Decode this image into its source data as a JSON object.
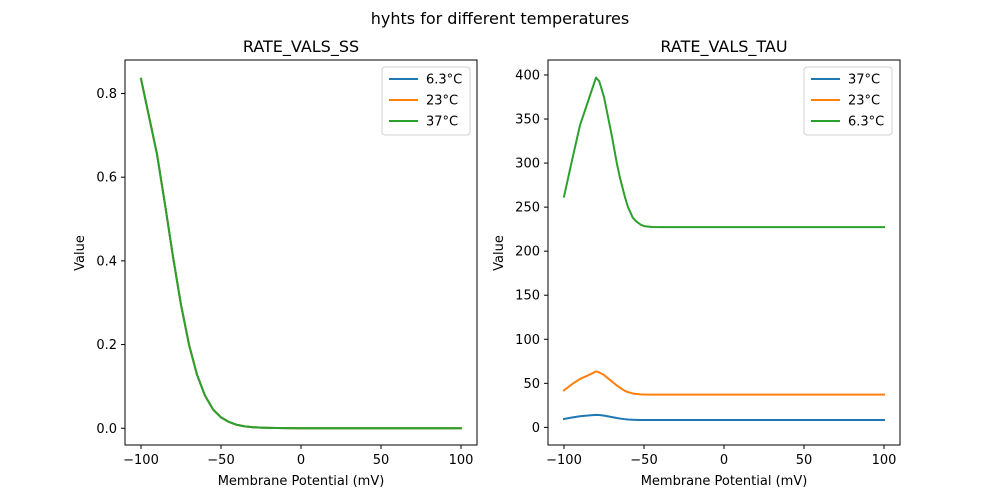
{
  "figure": {
    "suptitle": "hyhts for different temperatures"
  },
  "chart_data": [
    {
      "type": "line",
      "title": "RATE_VALS_SS",
      "xlabel": "Membrane Potential (mV)",
      "ylabel": "Value",
      "xlim": [
        -110,
        110
      ],
      "ylim": [
        -0.04,
        0.88
      ],
      "xticks": [
        -100,
        -50,
        0,
        50,
        100
      ],
      "xtick_labels": [
        "−100",
        "−50",
        "0",
        "50",
        "100"
      ],
      "yticks": [
        0.0,
        0.2,
        0.4,
        0.6,
        0.8
      ],
      "ytick_labels": [
        "0.0",
        "0.2",
        "0.4",
        "0.6",
        "0.8"
      ],
      "legend_position": "top-right",
      "grid": false,
      "x": [
        -100,
        -95,
        -90,
        -85,
        -80,
        -75,
        -70,
        -65,
        -60,
        -55,
        -50,
        -45,
        -40,
        -35,
        -30,
        -25,
        -20,
        -10,
        0,
        25,
        50,
        75,
        100
      ],
      "series": [
        {
          "name": "6.3°C",
          "color": "#1f77b4",
          "values": [
            0.835,
            0.745,
            0.655,
            0.535,
            0.41,
            0.295,
            0.2,
            0.128,
            0.078,
            0.045,
            0.026,
            0.015,
            0.008,
            0.0045,
            0.0025,
            0.0014,
            0.0008,
            0.0003,
            0.0001,
            0.0,
            0.0,
            0.0,
            0.0
          ]
        },
        {
          "name": "23°C",
          "color": "#ff7f0e",
          "values": [
            0.835,
            0.745,
            0.655,
            0.535,
            0.41,
            0.295,
            0.2,
            0.128,
            0.078,
            0.045,
            0.026,
            0.015,
            0.008,
            0.0045,
            0.0025,
            0.0014,
            0.0008,
            0.0003,
            0.0001,
            0.0,
            0.0,
            0.0,
            0.0
          ]
        },
        {
          "name": "37°C",
          "color": "#2ca02c",
          "values": [
            0.835,
            0.745,
            0.655,
            0.535,
            0.41,
            0.295,
            0.2,
            0.128,
            0.078,
            0.045,
            0.026,
            0.015,
            0.008,
            0.0045,
            0.0025,
            0.0014,
            0.0008,
            0.0003,
            0.0001,
            0.0,
            0.0,
            0.0,
            0.0
          ]
        }
      ]
    },
    {
      "type": "line",
      "title": "RATE_VALS_TAU",
      "xlabel": "Membrane Potential (mV)",
      "ylabel": "Value",
      "xlim": [
        -110,
        110
      ],
      "ylim": [
        -20,
        417
      ],
      "xticks": [
        -100,
        -50,
        0,
        50,
        100
      ],
      "xtick_labels": [
        "−100",
        "−50",
        "0",
        "50",
        "100"
      ],
      "yticks": [
        0,
        50,
        100,
        150,
        200,
        250,
        300,
        350,
        400
      ],
      "ytick_labels": [
        "0",
        "50",
        "100",
        "150",
        "200",
        "250",
        "300",
        "350",
        "400"
      ],
      "legend_position": "top-right",
      "grid": false,
      "x": [
        -100,
        -95,
        -90,
        -85,
        -80,
        -78,
        -75,
        -72,
        -70,
        -67,
        -65,
        -62,
        -60,
        -57,
        -55,
        -52,
        -50,
        -45,
        -40,
        -30,
        0,
        50,
        100
      ],
      "series": [
        {
          "name": "37°C",
          "color": "#1f77b4",
          "values": [
            9.5,
            11.2,
            12.6,
            13.5,
            14.2,
            14.0,
            13.3,
            12.3,
            11.6,
            10.6,
            10.0,
            9.3,
            8.9,
            8.6,
            8.5,
            8.4,
            8.4,
            8.4,
            8.4,
            8.4,
            8.4,
            8.4,
            8.4
          ]
        },
        {
          "name": "23°C",
          "color": "#ff7f0e",
          "values": [
            42,
            49,
            55,
            59,
            63.5,
            62.5,
            59.5,
            55,
            52,
            47.5,
            45,
            41.5,
            40,
            38.5,
            38,
            37.5,
            37.3,
            37.2,
            37.2,
            37.2,
            37.2,
            37.2,
            37.2
          ]
        },
        {
          "name": "6.3°C",
          "color": "#2ca02c",
          "values": [
            262,
            303,
            343,
            370,
            397,
            393,
            375,
            348,
            330,
            300,
            283,
            262,
            250,
            238,
            234,
            230,
            228.5,
            227.5,
            227.3,
            227.3,
            227.3,
            227.3,
            227.3
          ]
        }
      ]
    }
  ]
}
